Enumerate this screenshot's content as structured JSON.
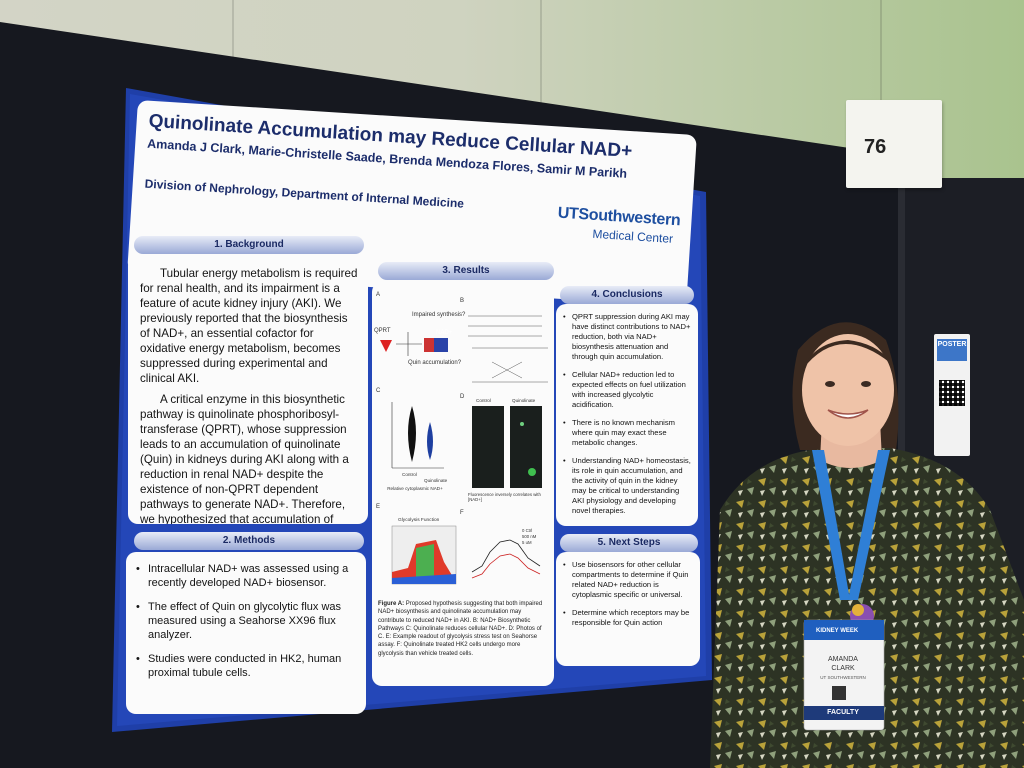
{
  "booth": {
    "number": "76"
  },
  "qr_placard": {
    "header": "POSTER"
  },
  "poster": {
    "title": "Quinolinate Accumulation may Reduce Cellular NAD+",
    "authors": "Amanda J Clark, Marie-Christelle Saade, Brenda Mendoza Flores, Samir M Parikh",
    "department": "Division of Nephrology, Department of Internal Medicine",
    "logo_line1": "UTSouthwestern",
    "logo_line2": "Medical Center",
    "background": {
      "heading": "1. Background",
      "para1": "Tubular energy metabolism is required for renal health, and its impairment is a feature of acute kidney injury (AKI). We previously reported that the biosynthesis of NAD+, an essential cofactor for oxidative energy metabolism, becomes suppressed during experimental and clinical AKI.",
      "para2": "A critical enzyme in this biosynthetic pathway is quinolinate phosphoribosyl-transferase (QPRT), whose suppression leads to an accumulation of quinolinate (Quin) in kidneys during AKI along with a reduction in renal NAD+ despite the existence of non-QPRT dependent pathways to generate NAD+. Therefore, we hypothesized that accumulation of quin may also contribute to NAD+ reduction in AKI."
    },
    "methods": {
      "heading": "2. Methods",
      "bullets": [
        "Intracellular NAD+ was assessed using a recently developed NAD+ biosensor.",
        "The effect of Quin on glycolytic flux was measured using a Seahorse XX96 flux analyzer.",
        "Studies were conducted in HK2, human proximal tubule cells."
      ]
    },
    "results": {
      "heading": "3. Results",
      "caption_lead": "Figure A:",
      "caption": "Proposed hypothesis suggesting that both impaired NAD+ biosynthesis and quinolinate accumulation may contribute to reduced NAD+ in AKI. B: NAD+ Biosynthetic Pathways C: Quinolinate reduces cellular NAD+. D: Photos of C. E: Example readout of glycolysis stress test on Seahorse assay. F: Quinolinate treated HK2 cells undergo more glycolysis than vehicle treated cells.",
      "panel_labels": [
        "A",
        "B",
        "C",
        "D",
        "E",
        "F"
      ],
      "fig_a": {
        "top": "Impaired synthesis?",
        "left": "QPRT",
        "right": "NAD+",
        "bottom": "Quin accumulation?"
      },
      "fig_c_ylabel": "Relative cytoplasmic NAD+",
      "fig_c_x": [
        "Control",
        "Quinolinate"
      ],
      "fig_d": {
        "left": "Control",
        "right": "Quinolinate",
        "note": "Fluorescence inversely correlates with [NAD+]"
      },
      "fig_e_title": "Glycolysis Function",
      "fig_f_legend": [
        "0 Ctrl",
        "500 nM",
        "5 uM"
      ]
    },
    "conclusions": {
      "heading": "4. Conclusions",
      "bullets": [
        "QPRT suppression during AKI may have distinct contributions to NAD+ reduction, both via NAD+ biosynthesis attenuation and through quin accumulation.",
        "Cellular NAD+ reduction led to expected effects on fuel utilization with increased glycolytic acidification.",
        "There is no known mechanism where quin may exact these metabolic changes.",
        "Understanding NAD+ homeostasis, its role in quin accumulation, and the activity of quin in the kidney may be critical to understanding AKI physiology and developing novel therapies."
      ]
    },
    "next_steps": {
      "heading": "5. Next Steps",
      "bullets": [
        "Use biosensors for other cellular compartments to determine if Quin related NAD+ reduction is cytoplasmic specific or universal.",
        "Determine which receptors may be responsible for Quin action"
      ]
    }
  },
  "badge": {
    "event": "KIDNEY WEEK",
    "first_name": "AMANDA",
    "last_name": "CLARK",
    "org": "UT SOUTHWESTERN",
    "role": "FACULTY",
    "lanyard_color": "#2f7fd6"
  },
  "colors": {
    "poster_blue": "#1f3fa8",
    "title_blue": "#1c2d6b",
    "board": "#16181f"
  }
}
